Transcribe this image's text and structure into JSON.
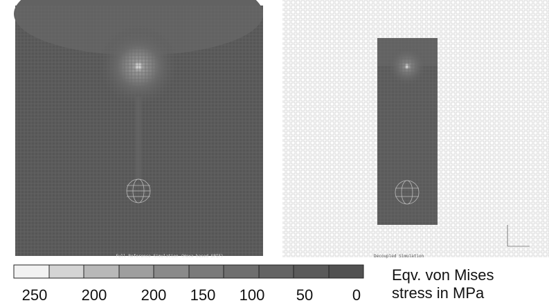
{
  "panels": [
    {
      "caption": "Full Reference Simulation (Hexa based SPIF)"
    },
    {
      "caption": "Decoupled Simulation"
    }
  ],
  "legend": {
    "labels": [
      250,
      200,
      200,
      150,
      100,
      50,
      0
    ],
    "title": [
      "Eqv. von Mises",
      "stress in MPa"
    ]
  }
}
